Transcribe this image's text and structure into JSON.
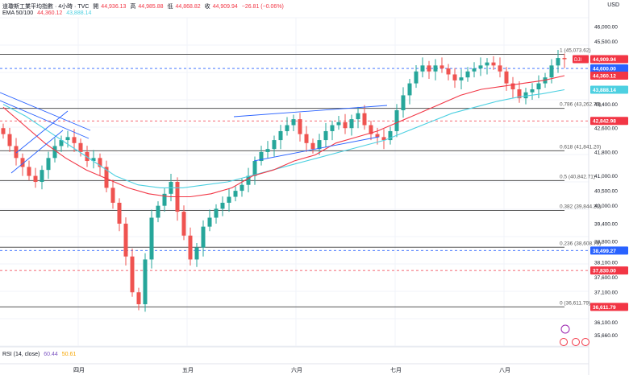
{
  "header": {
    "title": "道瓊斯工業平均指數 · 4小時 · TVC",
    "open_label": "開",
    "open": "44,936.13",
    "high_label": "高",
    "high": "44,985.88",
    "low_label": "低",
    "low": "44,868.82",
    "close_label": "收",
    "close": "44,909.94",
    "change": "−26.81 (−0.06%)",
    "ema_label": "EMA 50/100",
    "ema50": "44,360.12",
    "ema100": "43,888.14",
    "currency": "USD"
  },
  "rsi": {
    "label": "RSI (14, close)",
    "value": "60.44",
    "ma": "50.61"
  },
  "colors": {
    "up": "#26a69a",
    "down": "#ef5350",
    "ema50": "#f23645",
    "ema100": "#4dd0e1",
    "fib": "#131722",
    "channel": "#2962ff",
    "accent_blue": "#2962ff"
  },
  "chart_data": {
    "type": "candlestick",
    "title": "道瓊斯工業平均指數 · 4小時 · TVC",
    "ylabel": "USD",
    "ylim": [
      35300,
      46300
    ],
    "x_labels": [
      "四月",
      "五月",
      "六月",
      "七月",
      "八月"
    ],
    "y_ticks": [
      "46,000.00",
      "45,500.00",
      "43,400.00",
      "42,600.00",
      "41,800.00",
      "41,000.00",
      "40,500.00",
      "40,000.00",
      "39,400.00",
      "38,800.00",
      "38,100.00",
      "37,600.00",
      "37,100.00",
      "36,100.00",
      "35,660.00"
    ],
    "fib_levels": [
      {
        "label": "1 (45,073.62)",
        "value": 45073.62
      },
      {
        "label": "0.786 (43,262.79)",
        "value": 43262.79
      },
      {
        "label": "0.618 (41,841.20)",
        "value": 41841.2
      },
      {
        "label": "0.5 (40,842.71)",
        "value": 40842.71
      },
      {
        "label": "0.382 (39,844.21)",
        "value": 39844.21
      },
      {
        "label": "0.236 (38,608.78)",
        "value": 38608.78
      },
      {
        "label": "0 (36,611.79)",
        "value": 36611.79
      }
    ],
    "price_tags": [
      {
        "label": "44,909.94",
        "value": 44909.94,
        "color": "#f23645",
        "prefix": "DJI"
      },
      {
        "label": "44,600.00",
        "value": 44600,
        "color": "#2962ff"
      },
      {
        "label": "44,360.12",
        "value": 44360.12,
        "color": "#f23645"
      },
      {
        "label": "43,888.14",
        "value": 43888.14,
        "color": "#4dd0e1"
      },
      {
        "label": "42,842.98",
        "value": 42842.98,
        "color": "#f23645"
      },
      {
        "label": "38,499.27",
        "value": 38499.27,
        "color": "#2962ff"
      },
      {
        "label": "37,830.00",
        "value": 37830,
        "color": "#f23645"
      },
      {
        "label": "36,611.79",
        "value": 36611.79,
        "color": "#f23645"
      }
    ],
    "close_series": [
      42400,
      42000,
      41600,
      41300,
      41000,
      40800,
      41200,
      41600,
      42000,
      42200,
      42300,
      42100,
      41800,
      41500,
      41600,
      41300,
      40600,
      40100,
      39400,
      38300,
      37100,
      36700,
      38200,
      39600,
      40000,
      40400,
      40800,
      39800,
      39000,
      38200,
      38600,
      39300,
      39600,
      39900,
      40100,
      40300,
      40500,
      40700,
      41000,
      41500,
      41800,
      41900,
      42200,
      42500,
      42700,
      42900,
      42400,
      42100,
      41900,
      42200,
      42500,
      42700,
      42800,
      42600,
      42900,
      43100,
      42700,
      42400,
      42300,
      42200,
      42500,
      43200,
      43700,
      44100,
      44500,
      44700,
      44500,
      44700,
      44600,
      44400,
      44200,
      44300,
      44500,
      44600,
      44700,
      44800,
      44700,
      44500,
      44100,
      43900,
      43600,
      43800,
      43900,
      44100,
      44300,
      44700,
      44950,
      44910
    ],
    "ema50": [
      43300,
      42700,
      42100,
      41600,
      41200,
      40900,
      40600,
      40400,
      40300,
      40300,
      40400,
      40600,
      41000,
      41200,
      41500,
      41700,
      42100,
      42300,
      42500,
      42800,
      43100,
      43400,
      43700,
      43900,
      44000,
      44100,
      44200,
      44360
    ],
    "ema100": [
      43400,
      43000,
      42500,
      42000,
      41500,
      41000,
      40700,
      40600,
      40600,
      40700,
      40800,
      41000,
      41200,
      41400,
      41600,
      41800,
      42000,
      42200,
      42500,
      42800,
      43100,
      43300,
      43500,
      43650,
      43750,
      43888
    ]
  }
}
